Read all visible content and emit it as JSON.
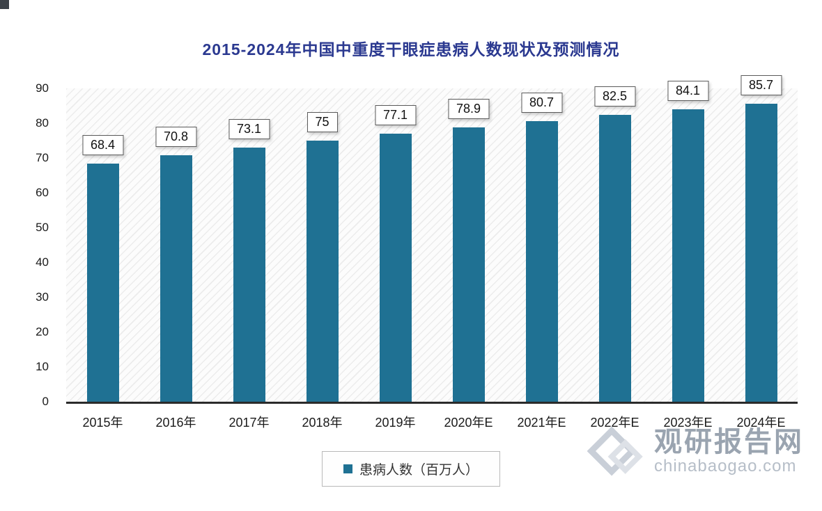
{
  "chart_data": {
    "type": "bar",
    "title": "2015-2024年中国中重度干眼症患病人数现状及预测情况",
    "categories": [
      "2015年",
      "2016年",
      "2017年",
      "2018年",
      "2019年",
      "2020年E",
      "2021年E",
      "2022年E",
      "2023年E",
      "2024年E"
    ],
    "values": [
      68.4,
      70.8,
      73.1,
      75,
      77.1,
      78.9,
      80.7,
      82.5,
      84.1,
      85.7
    ],
    "xlabel": "",
    "ylabel": "",
    "ylim": [
      0,
      90
    ],
    "yticks": [
      0,
      10,
      20,
      30,
      40,
      50,
      60,
      70,
      80,
      90
    ],
    "grid": false,
    "legend_position": "bottom",
    "bar_color": "#1f7193",
    "value_labels_boxed": true
  },
  "legend": {
    "label": "患病人数（百万人）",
    "swatch_color": "#1f7193"
  },
  "watermark": {
    "name": "观研报告网",
    "domain": "chinabaogao.com"
  },
  "colors": {
    "title": "#2b3990",
    "axis": "#2b2b2b",
    "watermark_gray": "#9aa4b0"
  }
}
